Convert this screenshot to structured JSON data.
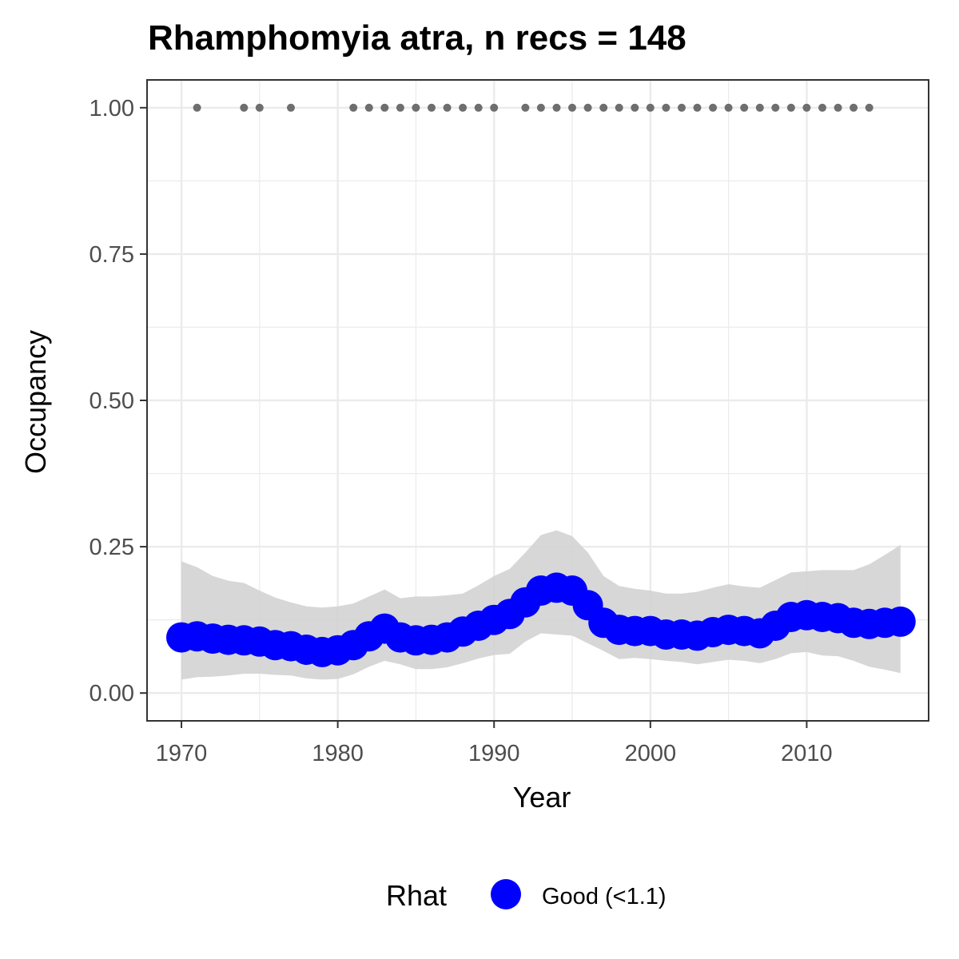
{
  "chart_data": {
    "type": "line",
    "title": "Rhamphomyia atra, n recs = 148",
    "xlabel": "Year",
    "ylabel": "Occupancy",
    "xlim": [
      1967.8,
      2017.8
    ],
    "ylim": [
      -0.0475,
      1.0475
    ],
    "x_ticks": [
      1970,
      1980,
      1990,
      2000,
      2010
    ],
    "x_tick_labels": [
      "1970",
      "1980",
      "1990",
      "2000",
      "2010"
    ],
    "y_ticks": [
      0,
      0.25,
      0.5,
      0.75,
      1.0
    ],
    "y_tick_labels": [
      "0.00",
      "0.25",
      "0.50",
      "0.75",
      "1.00"
    ],
    "grid": true,
    "legend": {
      "title": "Rhat",
      "position": "bottom",
      "entries": [
        {
          "label": "Good (<1.1)",
          "color": "#0000ff"
        }
      ]
    },
    "colors": {
      "mean": "#0000ff",
      "ribbon": "#d3d3d3",
      "records": "#6e6e6e",
      "grid": "#ebebeb",
      "border": "#333333"
    },
    "series": [
      {
        "kind": "mean",
        "rhat": "Good (<1.1)",
        "x": [
          1970,
          1971,
          1972,
          1973,
          1974,
          1975,
          1976,
          1977,
          1978,
          1979,
          1980,
          1981,
          1982,
          1983,
          1984,
          1985,
          1986,
          1987,
          1988,
          1989,
          1990,
          1991,
          1992,
          1993,
          1994,
          1995,
          1996,
          1997,
          1998,
          1999,
          2000,
          2001,
          2002,
          2003,
          2004,
          2005,
          2006,
          2007,
          2008,
          2009,
          2010,
          2011,
          2012,
          2013,
          2014,
          2015,
          2016
        ],
        "y": [
          0.095,
          0.097,
          0.093,
          0.091,
          0.09,
          0.088,
          0.082,
          0.08,
          0.074,
          0.07,
          0.073,
          0.082,
          0.097,
          0.11,
          0.095,
          0.09,
          0.091,
          0.095,
          0.105,
          0.115,
          0.125,
          0.135,
          0.155,
          0.175,
          0.18,
          0.175,
          0.15,
          0.12,
          0.108,
          0.106,
          0.106,
          0.1,
          0.1,
          0.098,
          0.104,
          0.108,
          0.106,
          0.102,
          0.115,
          0.13,
          0.133,
          0.13,
          0.128,
          0.12,
          0.118,
          0.12,
          0.122
        ]
      },
      {
        "kind": "interval",
        "x": [
          1970,
          1971,
          1972,
          1973,
          1974,
          1975,
          1976,
          1977,
          1978,
          1979,
          1980,
          1981,
          1982,
          1983,
          1984,
          1985,
          1986,
          1987,
          1988,
          1989,
          1990,
          1991,
          1992,
          1993,
          1994,
          1995,
          1996,
          1997,
          1998,
          1999,
          2000,
          2001,
          2002,
          2003,
          2004,
          2005,
          2006,
          2007,
          2008,
          2009,
          2010,
          2011,
          2012,
          2013,
          2014,
          2015,
          2016
        ],
        "upper": [
          0.225,
          0.215,
          0.2,
          0.192,
          0.188,
          0.175,
          0.163,
          0.155,
          0.148,
          0.146,
          0.148,
          0.153,
          0.165,
          0.177,
          0.162,
          0.165,
          0.165,
          0.167,
          0.17,
          0.184,
          0.2,
          0.212,
          0.24,
          0.27,
          0.278,
          0.268,
          0.24,
          0.2,
          0.183,
          0.178,
          0.175,
          0.17,
          0.17,
          0.173,
          0.18,
          0.186,
          0.182,
          0.18,
          0.193,
          0.206,
          0.208,
          0.21,
          0.21,
          0.21,
          0.22,
          0.236,
          0.253
        ],
        "lower": [
          0.023,
          0.027,
          0.028,
          0.03,
          0.033,
          0.033,
          0.031,
          0.03,
          0.025,
          0.023,
          0.024,
          0.032,
          0.045,
          0.055,
          0.049,
          0.041,
          0.041,
          0.044,
          0.051,
          0.059,
          0.065,
          0.067,
          0.088,
          0.102,
          0.1,
          0.098,
          0.085,
          0.072,
          0.058,
          0.06,
          0.058,
          0.055,
          0.053,
          0.049,
          0.053,
          0.057,
          0.055,
          0.051,
          0.058,
          0.068,
          0.07,
          0.064,
          0.063,
          0.055,
          0.045,
          0.04,
          0.034
        ]
      },
      {
        "kind": "records",
        "x": [
          1971,
          1974,
          1975,
          1977,
          1981,
          1982,
          1983,
          1984,
          1985,
          1986,
          1987,
          1988,
          1989,
          1990,
          1992,
          1993,
          1994,
          1995,
          1996,
          1997,
          1998,
          1999,
          2000,
          2001,
          2002,
          2003,
          2004,
          2005,
          2006,
          2007,
          2008,
          2009,
          2010,
          2011,
          2012,
          2013,
          2014
        ],
        "y": [
          1,
          1,
          1,
          1,
          1,
          1,
          1,
          1,
          1,
          1,
          1,
          1,
          1,
          1,
          1,
          1,
          1,
          1,
          1,
          1,
          1,
          1,
          1,
          1,
          1,
          1,
          1,
          1,
          1,
          1,
          1,
          1,
          1,
          1,
          1,
          1,
          1
        ]
      }
    ]
  }
}
